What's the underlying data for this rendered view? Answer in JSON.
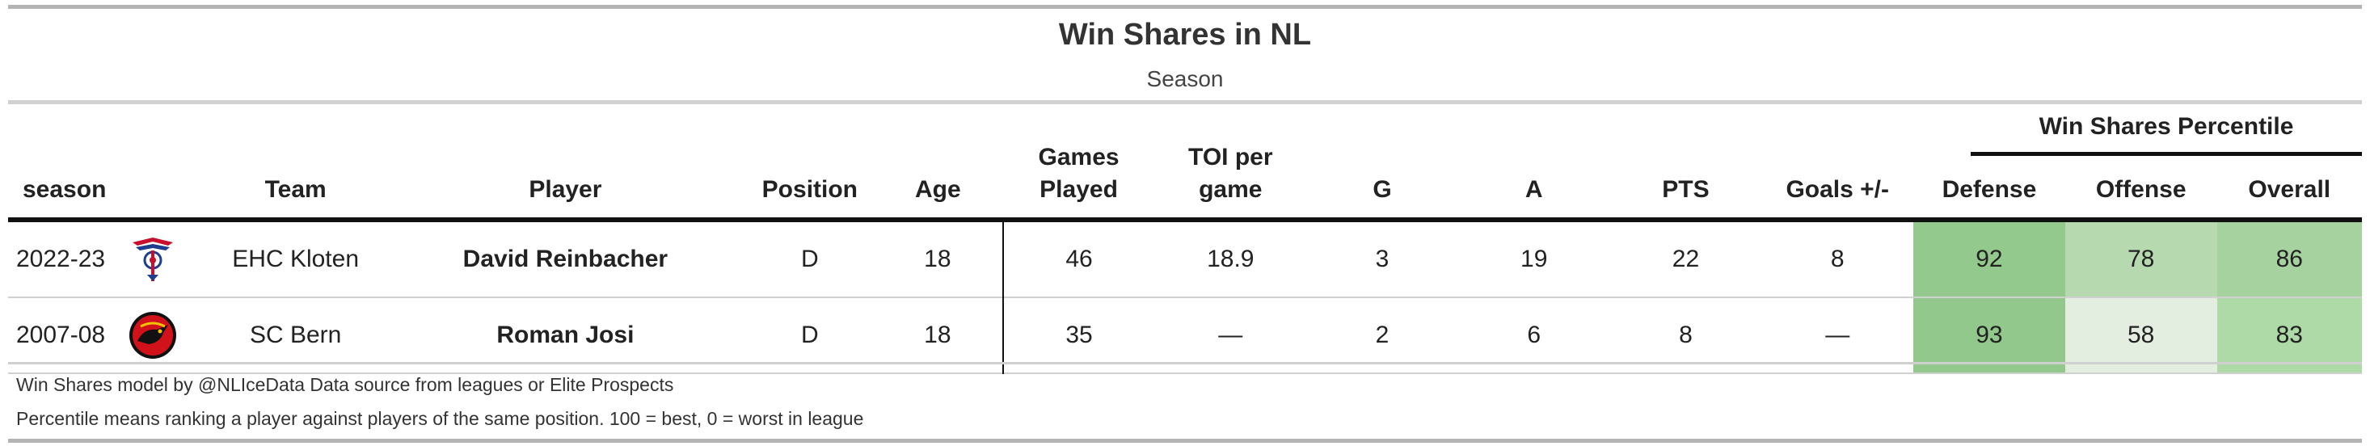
{
  "title": "Win Shares in NL",
  "subtitle": "Season",
  "spanner": "Win Shares Percentile",
  "columns": {
    "season": "season",
    "team": "Team",
    "player": "Player",
    "position": "Position",
    "age": "Age",
    "games": "Games Played",
    "toi": "TOI per game",
    "g": "G",
    "a": "A",
    "pts": "PTS",
    "plusminus": "Goals +/-",
    "defense": "Defense",
    "offense": "Offense",
    "overall": "Overall"
  },
  "rows": [
    {
      "season": "2022-23",
      "team_logo": "ehc-kloten-logo",
      "team": "EHC Kloten",
      "player": "David Reinbacher",
      "position": "D",
      "age": "18",
      "games": "46",
      "toi": "18.9",
      "g": "3",
      "a": "19",
      "pts": "22",
      "plusminus": "8",
      "defense": "92",
      "offense": "78",
      "overall": "86"
    },
    {
      "season": "2007-08",
      "team_logo": "sc-bern-logo",
      "team": "SC Bern",
      "player": "Roman Josi",
      "position": "D",
      "age": "18",
      "games": "35",
      "toi": "—",
      "g": "2",
      "a": "6",
      "pts": "8",
      "plusminus": "—",
      "defense": "93",
      "offense": "58",
      "overall": "83"
    }
  ],
  "colors": {
    "percentile_92": "#94c98e",
    "percentile_93": "#92c88c",
    "percentile_86": "#a6d29f",
    "percentile_83": "#addaa6",
    "percentile_78": "#b6d9b0",
    "percentile_58": "#e3eee0"
  },
  "notes": [
    "Win Shares model by @NLIceData Data source from leagues or Elite Prospects",
    "Percentile means ranking a player against players of the same position. 100 = best, 0 = worst in league"
  ]
}
